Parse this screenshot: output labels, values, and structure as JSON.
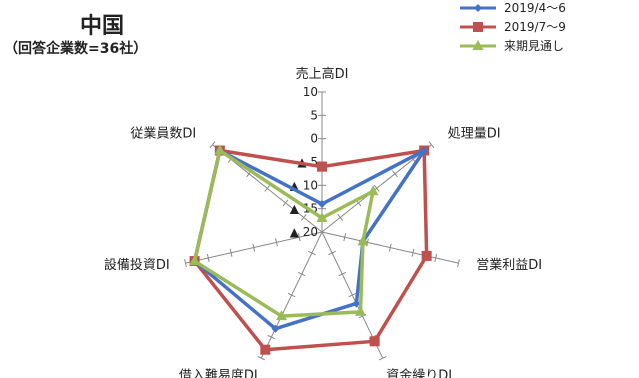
{
  "title": "中国",
  "subtitle": "（回答企業数=36社）",
  "chart_data": {
    "type": "radar",
    "axes": [
      "売上高DI",
      "処理量DI",
      "営業利益DI",
      "資金繰りDI",
      "借入難易度DI",
      "設備投資DI",
      "従業員数DI"
    ],
    "ticks": [
      "10",
      "5",
      "0",
      "▲ 5",
      "▲ 10",
      "▲ 15",
      "▲ 20"
    ],
    "rmin": -20,
    "rmax": 10,
    "series": [
      {
        "name": "2019/4～6",
        "color": "#4472c4",
        "marker": "diamond",
        "values": [
          -14,
          8,
          -11,
          -3,
          3,
          8,
          8
        ]
      },
      {
        "name": "2019/7～9",
        "color": "#c0504d",
        "marker": "square",
        "values": [
          -6,
          8,
          3,
          6,
          8,
          8,
          8
        ]
      },
      {
        "name": "来期見通し",
        "color": "#9bbb59",
        "marker": "triangle",
        "values": [
          -17,
          -6,
          -11,
          -1,
          0,
          8,
          8
        ]
      }
    ],
    "legend": "top-right"
  }
}
